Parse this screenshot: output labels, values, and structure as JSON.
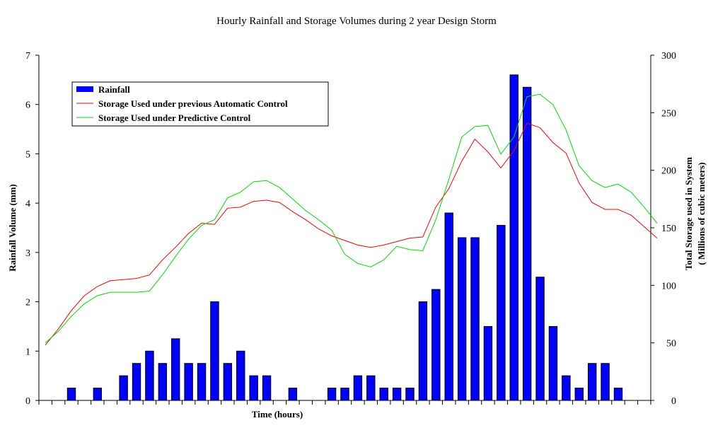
{
  "chart_data": {
    "type": "bar+line",
    "title": "Hourly Rainfall and Storage Volumes during 2 year Design Storm",
    "xlabel": "Time (hours)",
    "ylabel_left": "Rainfall Volume (mm)",
    "ylabel_right_line1": "Total Storage used in System",
    "ylabel_right_line2": "( Millions of cubic meters)",
    "ylim_left": [
      0,
      7
    ],
    "ylim_right": [
      0,
      300
    ],
    "yticks_left": [
      "0",
      "1",
      "2",
      "3",
      "4",
      "5",
      "6",
      "7"
    ],
    "yticks_right": [
      "0",
      "50",
      "100",
      "150",
      "200",
      "250",
      "300"
    ],
    "legend_position": "top-left",
    "grid": false,
    "hours": 47,
    "rainfall": {
      "name": "Rainfall",
      "color": "#0000ff",
      "values": [
        0,
        0,
        0.25,
        0,
        0.25,
        0,
        0.5,
        0.75,
        1.0,
        0.75,
        1.25,
        0.75,
        0.75,
        2.0,
        0.75,
        1.0,
        0.5,
        0.5,
        0,
        0.25,
        0,
        0,
        0.25,
        0.25,
        0.5,
        0.5,
        0.25,
        0.25,
        0.25,
        2.0,
        2.25,
        3.8,
        3.3,
        3.3,
        1.5,
        3.55,
        6.6,
        6.35,
        2.5,
        1.5,
        0.5,
        0.25,
        0.75,
        0.75,
        0.25,
        0,
        0
      ]
    },
    "series": [
      {
        "name": "Storage Used under previous Automatic Control",
        "color": "#ff0000",
        "values": [
          48,
          62,
          78,
          91,
          99,
          104,
          105,
          106,
          109,
          122,
          133,
          145,
          154,
          153,
          167,
          168,
          173,
          174,
          172,
          164,
          157,
          149,
          143,
          139,
          135,
          133,
          135,
          138,
          141,
          142,
          168,
          184,
          208,
          227,
          216,
          202,
          217,
          241,
          237,
          224,
          215,
          189,
          172,
          166,
          166,
          161,
          151,
          141
        ]
      },
      {
        "name": "Storage Used under Predictive Control",
        "color": "#00dd00",
        "values": [
          50,
          60,
          73,
          84,
          91,
          94,
          94,
          94,
          95,
          109,
          125,
          140,
          152,
          157,
          176,
          181,
          190,
          191,
          185,
          175,
          165,
          157,
          148,
          127,
          119,
          116,
          122,
          134,
          131,
          130,
          157,
          192,
          229,
          238,
          239,
          214,
          229,
          264,
          266,
          257,
          235,
          204,
          191,
          185,
          188,
          181,
          168,
          154
        ]
      }
    ]
  }
}
